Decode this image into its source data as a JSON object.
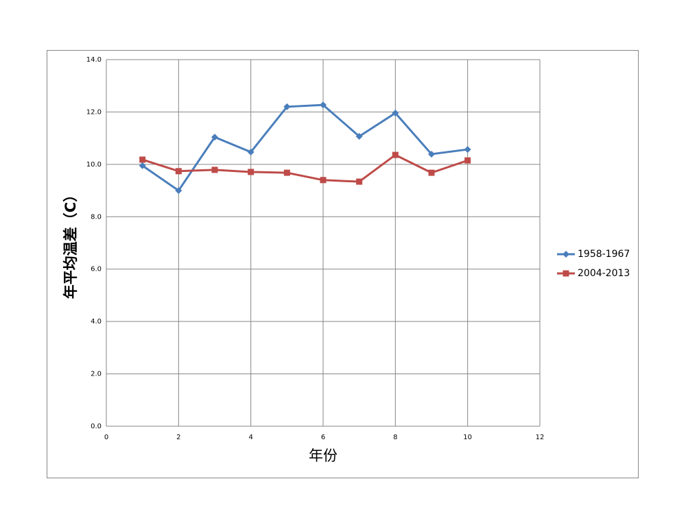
{
  "chart_data": {
    "type": "line",
    "x_label": "年份",
    "y_label": "年平均温差（C）",
    "x": [
      1,
      2,
      3,
      4,
      5,
      6,
      7,
      8,
      9,
      10
    ],
    "series": [
      {
        "name": "1958-1967",
        "color": "#4a7ebb",
        "marker": "diamond",
        "values": [
          9.95,
          9.0,
          11.04,
          10.47,
          12.2,
          12.27,
          11.07,
          11.96,
          10.39,
          10.57
        ]
      },
      {
        "name": "2004-2013",
        "color": "#be4b48",
        "marker": "square",
        "values": [
          10.18,
          9.74,
          9.79,
          9.71,
          9.68,
          9.4,
          9.34,
          10.36,
          9.68,
          10.15
        ]
      }
    ],
    "xlim": [
      0,
      12
    ],
    "xticks": [
      0,
      2,
      4,
      6,
      8,
      10,
      12
    ],
    "ylim": [
      0,
      14
    ],
    "yticks": [
      {
        "value": 0,
        "label": "0.0"
      },
      {
        "value": 2,
        "label": "2.0"
      },
      {
        "value": 4,
        "label": "4.0"
      },
      {
        "value": 6,
        "label": "6.0"
      },
      {
        "value": 8,
        "label": "8.0"
      },
      {
        "value": 10,
        "label": "10.0"
      },
      {
        "value": 12,
        "label": "12.0"
      },
      {
        "value": 14,
        "label": "14.0"
      }
    ],
    "grid": true,
    "legend": "right"
  }
}
